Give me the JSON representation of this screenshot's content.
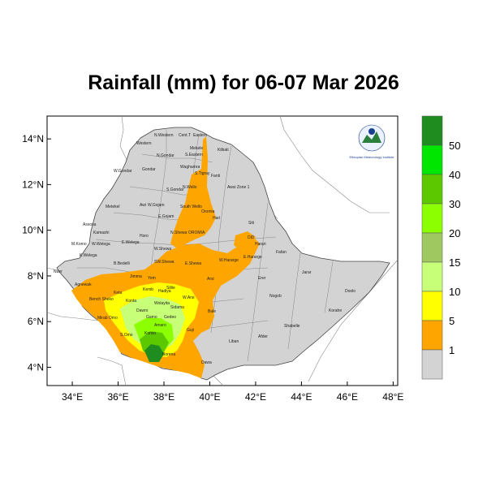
{
  "title": "Rainfall (mm) for 06-07 Mar 2026",
  "axes": {
    "x_ticks": [
      "34°E",
      "36°E",
      "38°E",
      "40°E",
      "42°E",
      "44°E",
      "46°E",
      "48°E"
    ],
    "y_ticks": [
      "14°N",
      "12°N",
      "10°N",
      "8°N",
      "6°N",
      "4°N"
    ],
    "x_range_deg": [
      32.9,
      48.2
    ],
    "y_range_deg": [
      3.2,
      15.0
    ]
  },
  "legend": {
    "labels": [
      "50",
      "40",
      "30",
      "20",
      "15",
      "10",
      "5",
      "1"
    ],
    "colors": [
      "#1e8c1e",
      "#00e600",
      "#5cc800",
      "#8cff00",
      "#a0c860",
      "#c8ff78",
      "#ffff00",
      "#ffa500",
      "#d3d3d3"
    ]
  },
  "admin_labels": [
    "N.Western",
    "Cent.T",
    "Eastern",
    "Western",
    "Mekele",
    "S.Eastern",
    "Kilbati",
    "W.Gondar",
    "Gondar",
    "Waghamra",
    "S.Tigray",
    "Fanti",
    "N.Gondar",
    "Metekel",
    "Awi",
    "S.Gondar",
    "N.Wello",
    "Awsi Zone 1",
    "W.Gojam",
    "E.Gojam",
    "South Wello",
    "Oromia",
    "Hari",
    "Assosa",
    "Kamashi",
    "Horo",
    "N.Shewa",
    "OROMIA",
    "Siti",
    "DiD",
    "Harari",
    "M.Komo",
    "W.Welega",
    "E.Welega",
    "W.Shewa",
    "Fafan",
    "K.Welega",
    "B.Bedelli",
    "Jarar",
    "Nuer",
    "Jimma",
    "SW.Shewa",
    "E.Shewa",
    "W.Hararge",
    "E.Hararge",
    "Erer",
    "Agnewak",
    "Yem",
    "Arsi",
    "Doolo",
    "Keta",
    "Kemb",
    "Hadiya",
    "Bench Sheko",
    "Konta",
    "Siltie",
    "W.Arsi",
    "Nogob",
    "Bale",
    "Korahe",
    "Mirab Omo",
    "Wolayita",
    "Sidama",
    "Dawro",
    "Gamo",
    "Gedeo",
    "S.Omo",
    "Amaro",
    "Guji",
    "Shabelle",
    "Afder",
    "Liban",
    "Konso",
    "Borena",
    "Dawa"
  ],
  "logo": {
    "text": "Ethiopian Meteorology Institute"
  }
}
